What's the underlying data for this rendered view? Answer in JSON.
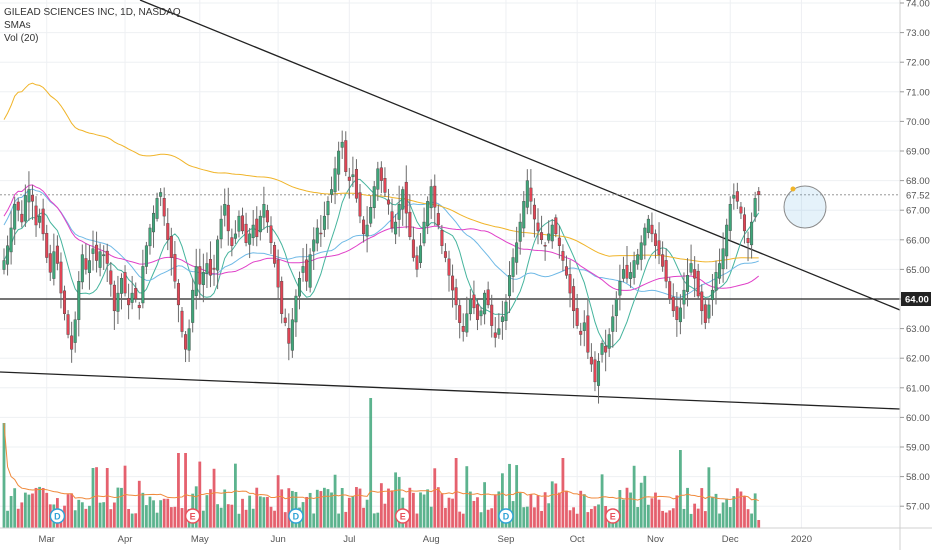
{
  "legend": {
    "symbol": "GILEAD SCIENCES INC, 1D, NASDAQ",
    "study_smas": "SMAs",
    "study_vol": "Vol (20)"
  },
  "colors": {
    "up": "#3fa67a",
    "down": "#e04555",
    "sma_fast": "#45b49d",
    "sma_mid": "#6fb9e6",
    "sma_slow": "#f0b429",
    "sma_slowest": "#e040c8",
    "trendline": "#222222",
    "support": "#222222",
    "grid": "#eef0f3",
    "event_dividend": "#2fa3d6",
    "event_earnings": "#e8505b"
  },
  "chart_data": {
    "type": "candlestick",
    "title": "GILEAD SCIENCES INC, 1D, NASDAQ",
    "price_axis": {
      "ticks": [
        "74.00",
        "73.00",
        "72.00",
        "71.00",
        "70.00",
        "69.00",
        "68.00",
        "67.00",
        "66.00",
        "65.00",
        "64.00",
        "63.00",
        "62.00",
        "61.00",
        "60.00",
        "59.00",
        "58.00",
        "57.00"
      ],
      "current_price_label": "67.52",
      "current_price": 67.52,
      "support_label": "64.00",
      "support_level": 64.0,
      "ylim": [
        56.5,
        74.2
      ]
    },
    "time_axis": {
      "labels": [
        "Mar",
        "Apr",
        "May",
        "Jun",
        "Jul",
        "Aug",
        "Sep",
        "Oct",
        "Nov",
        "Dec",
        "2020"
      ],
      "month_index": [
        12,
        34,
        55,
        77,
        97,
        120,
        141,
        161,
        183,
        204,
        224
      ]
    },
    "closes": [
      65.3,
      65.8,
      66.4,
      67.2,
      67.0,
      66.6,
      67.5,
      67.7,
      67.3,
      66.5,
      66.8,
      66.2,
      65.4,
      64.9,
      65.6,
      65.2,
      64.2,
      63.5,
      62.8,
      62.3,
      63.3,
      64.6,
      65.5,
      65.0,
      65.3,
      65.7,
      65.3,
      65.6,
      65.5,
      65.2,
      64.5,
      63.6,
      64.2,
      64.7,
      64.2,
      63.8,
      64.2,
      64.0,
      63.7,
      65.1,
      65.8,
      66.4,
      66.9,
      67.4,
      67.6,
      66.8,
      66.0,
      65.4,
      64.6,
      63.8,
      62.9,
      62.3,
      63.0,
      64.3,
      65.1,
      64.5,
      64.9,
      65.2,
      64.8,
      65.0,
      66.0,
      66.7,
      67.2,
      66.3,
      65.8,
      66.2,
      66.8,
      66.3,
      65.9,
      66.2,
      66.5,
      66.1,
      66.8,
      67.2,
      66.6,
      65.9,
      65.2,
      64.4,
      63.5,
      63.2,
      62.5,
      63.3,
      64.1,
      64.7,
      65.1,
      64.6,
      65.5,
      66.0,
      66.4,
      66.2,
      66.8,
      67.3,
      67.7,
      68.4,
      69.0,
      69.3,
      68.3,
      68.0,
      68.2,
      67.4,
      66.8,
      66.2,
      66.5,
      67.1,
      67.8,
      68.4,
      68.0,
      67.6,
      67.2,
      66.4,
      66.6,
      67.2,
      67.7,
      66.9,
      66.1,
      65.4,
      65.0,
      65.8,
      66.6,
      67.3,
      67.8,
      67.1,
      66.5,
      65.8,
      65.4,
      64.8,
      64.3,
      63.8,
      63.2,
      62.9,
      63.5,
      64.0,
      63.7,
      63.3,
      63.6,
      64.2,
      63.8,
      63.1,
      62.7,
      63.0,
      63.4,
      63.9,
      64.8,
      65.4,
      65.9,
      66.6,
      67.3,
      68.0,
      67.3,
      66.7,
      66.3,
      66.0,
      65.8,
      66.2,
      66.5,
      66.2,
      65.8,
      65.3,
      64.8,
      64.2,
      63.6,
      63.1,
      62.8,
      63.2,
      62.2,
      61.8,
      61.2,
      61.9,
      62.5,
      62.2,
      62.8,
      63.4,
      64.0,
      64.6,
      65.0,
      64.7,
      64.9,
      65.3,
      65.5,
      65.9,
      66.4,
      66.7,
      66.2,
      65.8,
      65.5,
      65.1,
      64.6,
      64.0,
      63.6,
      63.3,
      63.7,
      64.3,
      64.8,
      65.2,
      64.7,
      64.1,
      63.6,
      63.2,
      63.8,
      64.3,
      64.9,
      65.2,
      65.7,
      66.5,
      67.2,
      67.5,
      67.3,
      66.9,
      66.3,
      65.9,
      66.6,
      67.4,
      67.52
    ],
    "volume_axis_note": "Vol (20)",
    "event_markers": [
      {
        "index": 15,
        "label": "D"
      },
      {
        "index": 53,
        "label": "E"
      },
      {
        "index": 82,
        "label": "D"
      },
      {
        "index": 112,
        "label": "E"
      },
      {
        "index": 141,
        "label": "D"
      },
      {
        "index": 171,
        "label": "E"
      }
    ]
  }
}
